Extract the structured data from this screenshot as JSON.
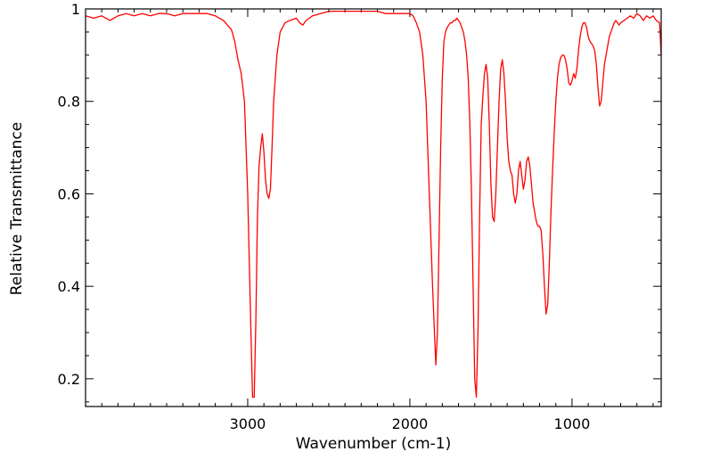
{
  "chart_data": {
    "type": "line",
    "title": "",
    "xlabel": "Wavenumber (cm-1)",
    "ylabel": "Relative Transmittance",
    "xlim": [
      4000,
      450
    ],
    "ylim": [
      0.14,
      1.0
    ],
    "x_reversed": true,
    "grid": false,
    "legend": "none",
    "x_ticks": [
      3000,
      2000,
      1000
    ],
    "x_tick_labels": [
      "3000",
      "2000",
      "1000"
    ],
    "y_ticks": [
      0.2,
      0.4,
      0.6,
      0.8,
      1.0
    ],
    "y_tick_labels": [
      "0.2",
      "0.4",
      "0.6",
      "0.8",
      "1"
    ],
    "line_color": "#ff0000",
    "series": [
      {
        "x": [
          4000,
          3950,
          3900,
          3850,
          3800,
          3750,
          3700,
          3650,
          3600,
          3550,
          3500,
          3450,
          3400,
          3350,
          3300,
          3250,
          3200,
          3150,
          3100,
          3080,
          3060,
          3040,
          3020,
          3000,
          2990,
          2980,
          2970,
          2960,
          2950,
          2940,
          2930,
          2920,
          2910,
          2900,
          2890,
          2880,
          2870,
          2860,
          2850,
          2840,
          2820,
          2800,
          2770,
          2740,
          2700,
          2680,
          2660,
          2640,
          2600,
          2550,
          2500,
          2450,
          2400,
          2350,
          2300,
          2250,
          2200,
          2150,
          2100,
          2050,
          2000,
          1980,
          1960,
          1940,
          1920,
          1900,
          1880,
          1860,
          1840,
          1830,
          1820,
          1810,
          1800,
          1790,
          1780,
          1770,
          1760,
          1750,
          1740,
          1730,
          1720,
          1710,
          1700,
          1690,
          1680,
          1670,
          1660,
          1650,
          1640,
          1630,
          1620,
          1610,
          1600,
          1590,
          1580,
          1570,
          1560,
          1550,
          1540,
          1530,
          1520,
          1510,
          1500,
          1490,
          1480,
          1470,
          1460,
          1450,
          1440,
          1430,
          1420,
          1410,
          1400,
          1390,
          1380,
          1370,
          1360,
          1350,
          1340,
          1330,
          1320,
          1310,
          1300,
          1290,
          1280,
          1270,
          1260,
          1250,
          1240,
          1230,
          1220,
          1210,
          1200,
          1190,
          1180,
          1170,
          1160,
          1150,
          1140,
          1130,
          1120,
          1110,
          1100,
          1090,
          1080,
          1070,
          1060,
          1050,
          1040,
          1030,
          1020,
          1010,
          1000,
          990,
          980,
          970,
          960,
          950,
          940,
          930,
          920,
          910,
          900,
          890,
          880,
          870,
          860,
          850,
          840,
          830,
          820,
          810,
          800,
          790,
          780,
          770,
          760,
          750,
          740,
          730,
          720,
          710,
          700,
          680,
          660,
          640,
          620,
          600,
          580,
          560,
          540,
          520,
          500,
          480,
          460,
          450
        ],
        "y": [
          0.985,
          0.98,
          0.985,
          0.975,
          0.985,
          0.99,
          0.985,
          0.99,
          0.985,
          0.99,
          0.99,
          0.985,
          0.99,
          0.99,
          0.99,
          0.99,
          0.985,
          0.975,
          0.955,
          0.93,
          0.89,
          0.86,
          0.8,
          0.6,
          0.45,
          0.3,
          0.16,
          0.16,
          0.32,
          0.55,
          0.66,
          0.7,
          0.73,
          0.69,
          0.63,
          0.6,
          0.59,
          0.61,
          0.7,
          0.8,
          0.9,
          0.95,
          0.97,
          0.975,
          0.98,
          0.97,
          0.965,
          0.975,
          0.985,
          0.99,
          0.995,
          0.995,
          0.995,
          0.995,
          0.995,
          0.995,
          0.995,
          0.99,
          0.99,
          0.99,
          0.99,
          0.985,
          0.97,
          0.95,
          0.9,
          0.8,
          0.6,
          0.4,
          0.23,
          0.3,
          0.5,
          0.7,
          0.85,
          0.93,
          0.95,
          0.96,
          0.965,
          0.97,
          0.97,
          0.975,
          0.975,
          0.98,
          0.975,
          0.97,
          0.96,
          0.95,
          0.93,
          0.9,
          0.85,
          0.75,
          0.6,
          0.4,
          0.2,
          0.16,
          0.3,
          0.55,
          0.75,
          0.81,
          0.86,
          0.88,
          0.85,
          0.75,
          0.62,
          0.55,
          0.54,
          0.6,
          0.7,
          0.8,
          0.87,
          0.89,
          0.86,
          0.8,
          0.72,
          0.67,
          0.65,
          0.64,
          0.6,
          0.58,
          0.6,
          0.65,
          0.67,
          0.64,
          0.61,
          0.63,
          0.67,
          0.68,
          0.66,
          0.62,
          0.58,
          0.56,
          0.54,
          0.53,
          0.53,
          0.52,
          0.47,
          0.4,
          0.34,
          0.36,
          0.45,
          0.56,
          0.65,
          0.73,
          0.8,
          0.85,
          0.88,
          0.895,
          0.9,
          0.9,
          0.89,
          0.87,
          0.84,
          0.835,
          0.845,
          0.86,
          0.85,
          0.87,
          0.91,
          0.94,
          0.96,
          0.97,
          0.97,
          0.96,
          0.94,
          0.93,
          0.925,
          0.92,
          0.91,
          0.88,
          0.83,
          0.79,
          0.8,
          0.84,
          0.88,
          0.9,
          0.92,
          0.94,
          0.95,
          0.96,
          0.97,
          0.975,
          0.97,
          0.965,
          0.97,
          0.975,
          0.98,
          0.985,
          0.98,
          0.99,
          0.985,
          0.975,
          0.985,
          0.98,
          0.985,
          0.975,
          0.97,
          0.9
        ]
      }
    ]
  }
}
